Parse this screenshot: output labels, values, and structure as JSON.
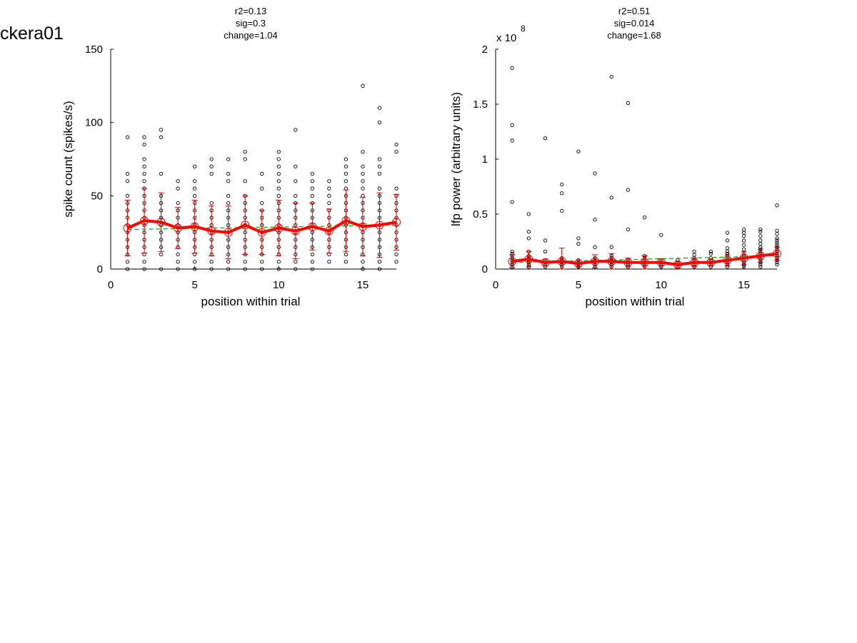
{
  "figure_title": "ckera01",
  "chart_data": [
    {
      "type": "scatter",
      "stats": {
        "r2": "r2=0.13",
        "sig": "sig=0.3",
        "change": "change=1.04"
      },
      "xlabel": "position within trial",
      "ylabel": "spike count (spikes/s)",
      "exponent_label": "",
      "xlim": [
        0,
        17
      ],
      "ylim": [
        0,
        150
      ],
      "x_ticks": [
        0,
        5,
        10,
        15
      ],
      "y_ticks": [
        0,
        50,
        100,
        150
      ],
      "y_tick_labels": [
        "0",
        "50",
        "100",
        "150"
      ],
      "grid": false,
      "colors": {
        "raw_points": "#000000",
        "mean_line": "#ff0000",
        "error_bars": "#cc0000",
        "mean_markers": "#ff0000",
        "fit_line": "#00aa00"
      },
      "points": [
        {
          "x": 1,
          "y": [
            0,
            5,
            10,
            15,
            20,
            25,
            30,
            35,
            40,
            45,
            50,
            60,
            65,
            90
          ]
        },
        {
          "x": 2,
          "y": [
            0,
            5,
            10,
            15,
            20,
            25,
            30,
            35,
            40,
            45,
            50,
            55,
            60,
            65,
            70,
            75,
            85,
            90
          ]
        },
        {
          "x": 3,
          "y": [
            0,
            10,
            15,
            20,
            25,
            30,
            35,
            40,
            45,
            50,
            65,
            90,
            95
          ]
        },
        {
          "x": 4,
          "y": [
            0,
            5,
            10,
            15,
            20,
            25,
            30,
            35,
            40,
            45,
            55,
            60
          ]
        },
        {
          "x": 5,
          "y": [
            0,
            5,
            10,
            15,
            20,
            25,
            30,
            35,
            40,
            45,
            50,
            55,
            60,
            70
          ]
        },
        {
          "x": 6,
          "y": [
            0,
            5,
            10,
            15,
            20,
            25,
            30,
            35,
            40,
            45,
            65,
            70,
            75
          ]
        },
        {
          "x": 7,
          "y": [
            0,
            5,
            10,
            15,
            20,
            25,
            30,
            35,
            40,
            45,
            50,
            60,
            65,
            75
          ]
        },
        {
          "x": 8,
          "y": [
            0,
            5,
            10,
            15,
            20,
            25,
            30,
            35,
            40,
            45,
            50,
            60,
            75,
            80
          ]
        },
        {
          "x": 9,
          "y": [
            0,
            5,
            10,
            15,
            20,
            25,
            30,
            35,
            40,
            45,
            55,
            65
          ]
        },
        {
          "x": 10,
          "y": [
            0,
            5,
            10,
            15,
            20,
            25,
            30,
            35,
            40,
            45,
            50,
            55,
            60,
            65,
            70,
            75,
            80
          ]
        },
        {
          "x": 11,
          "y": [
            0,
            5,
            10,
            15,
            20,
            25,
            30,
            35,
            40,
            45,
            50,
            60,
            70,
            95
          ]
        },
        {
          "x": 12,
          "y": [
            0,
            5,
            10,
            15,
            20,
            25,
            30,
            35,
            40,
            45,
            50,
            55,
            60,
            65
          ]
        },
        {
          "x": 13,
          "y": [
            5,
            10,
            15,
            20,
            25,
            30,
            35,
            40,
            45,
            50,
            55,
            60
          ]
        },
        {
          "x": 14,
          "y": [
            5,
            10,
            15,
            20,
            25,
            30,
            35,
            40,
            45,
            50,
            55,
            60,
            65,
            70,
            75
          ]
        },
        {
          "x": 15,
          "y": [
            0,
            5,
            10,
            15,
            20,
            25,
            30,
            35,
            40,
            45,
            50,
            55,
            60,
            65,
            70,
            80,
            125
          ]
        },
        {
          "x": 16,
          "y": [
            0,
            5,
            10,
            15,
            20,
            25,
            30,
            35,
            40,
            45,
            50,
            55,
            65,
            70,
            75,
            100,
            110
          ]
        },
        {
          "x": 17,
          "y": [
            5,
            10,
            15,
            20,
            25,
            30,
            35,
            40,
            45,
            50,
            55,
            80,
            85
          ]
        }
      ],
      "mean": [
        28,
        33,
        32,
        28,
        29,
        26,
        25,
        30,
        25,
        28,
        26,
        29,
        26,
        33,
        29,
        30,
        32
      ],
      "error": [
        19,
        22,
        20,
        14,
        18,
        17,
        18,
        20,
        15,
        19,
        19,
        16,
        15,
        21,
        20,
        22,
        19
      ],
      "fit": {
        "x": [
          1,
          17
        ],
        "y": [
          27,
          30
        ]
      }
    },
    {
      "type": "scatter",
      "stats": {
        "r2": "r2=0.51",
        "sig": "sig=0.014",
        "change": "change=1.68"
      },
      "xlabel": "position within trial",
      "ylabel": "lfp power (arbitrary units)",
      "exponent_label": "x 10",
      "exponent_power": "8",
      "xlim": [
        0,
        17
      ],
      "ylim": [
        0,
        2
      ],
      "x_ticks": [
        0,
        5,
        10,
        15
      ],
      "y_ticks": [
        0,
        0.5,
        1,
        1.5,
        2
      ],
      "y_tick_labels": [
        "0",
        "0.5",
        "1",
        "1.5",
        "2"
      ],
      "grid": false,
      "colors": {
        "raw_points": "#000000",
        "mean_line": "#ff0000",
        "error_bars": "#cc0000",
        "mean_markers": "#ff0000",
        "fit_line": "#00aa00"
      },
      "points": [
        {
          "x": 1,
          "y": [
            0.02,
            0.04,
            0.06,
            0.08,
            0.1,
            0.12,
            0.14,
            0.16,
            0.61,
            1.17,
            1.31,
            1.83
          ]
        },
        {
          "x": 2,
          "y": [
            0.02,
            0.04,
            0.06,
            0.08,
            0.1,
            0.12,
            0.16,
            0.28,
            0.34,
            0.5
          ]
        },
        {
          "x": 3,
          "y": [
            0.02,
            0.04,
            0.06,
            0.08,
            0.16,
            0.26,
            1.19
          ]
        },
        {
          "x": 4,
          "y": [
            0.02,
            0.04,
            0.06,
            0.08,
            0.1,
            0.53,
            0.69,
            0.77
          ]
        },
        {
          "x": 5,
          "y": [
            0.02,
            0.04,
            0.06,
            0.08,
            0.23,
            0.28,
            1.07
          ]
        },
        {
          "x": 6,
          "y": [
            0.02,
            0.04,
            0.06,
            0.08,
            0.1,
            0.2,
            0.45,
            0.87
          ]
        },
        {
          "x": 7,
          "y": [
            0.02,
            0.04,
            0.06,
            0.08,
            0.1,
            0.12,
            0.2,
            0.65,
            1.75
          ]
        },
        {
          "x": 8,
          "y": [
            0.02,
            0.04,
            0.06,
            0.08,
            0.36,
            0.72,
            1.51
          ]
        },
        {
          "x": 9,
          "y": [
            0.02,
            0.04,
            0.06,
            0.08,
            0.1,
            0.12,
            0.47
          ]
        },
        {
          "x": 10,
          "y": [
            0.02,
            0.04,
            0.06,
            0.08,
            0.31
          ]
        },
        {
          "x": 11,
          "y": [
            0.02,
            0.04,
            0.06,
            0.08
          ]
        },
        {
          "x": 12,
          "y": [
            0.02,
            0.04,
            0.06,
            0.08,
            0.1,
            0.13,
            0.16
          ]
        },
        {
          "x": 13,
          "y": [
            0.02,
            0.04,
            0.06,
            0.08,
            0.1,
            0.14,
            0.16
          ]
        },
        {
          "x": 14,
          "y": [
            0.02,
            0.04,
            0.06,
            0.08,
            0.1,
            0.12,
            0.14,
            0.16,
            0.19,
            0.26,
            0.33
          ]
        },
        {
          "x": 15,
          "y": [
            0.02,
            0.04,
            0.06,
            0.08,
            0.1,
            0.12,
            0.14,
            0.18,
            0.22,
            0.26,
            0.3,
            0.33,
            0.36
          ]
        },
        {
          "x": 16,
          "y": [
            0.02,
            0.04,
            0.06,
            0.08,
            0.1,
            0.12,
            0.14,
            0.16,
            0.18,
            0.2,
            0.23,
            0.26,
            0.3,
            0.34,
            0.36
          ]
        },
        {
          "x": 17,
          "y": [
            0.04,
            0.06,
            0.08,
            0.1,
            0.12,
            0.14,
            0.16,
            0.18,
            0.2,
            0.22,
            0.24,
            0.26,
            0.28,
            0.32,
            0.35,
            0.58
          ]
        }
      ],
      "mean": [
        0.07,
        0.09,
        0.06,
        0.07,
        0.05,
        0.07,
        0.07,
        0.06,
        0.06,
        0.06,
        0.04,
        0.06,
        0.06,
        0.08,
        0.1,
        0.12,
        0.14
      ],
      "error": [
        0.06,
        0.07,
        0.03,
        0.12,
        0.03,
        0.06,
        0.07,
        0.04,
        0.06,
        0.03,
        0.03,
        0.04,
        0.03,
        0.05,
        0.06,
        0.06,
        0.06
      ],
      "fit": {
        "x": [
          1,
          17
        ],
        "y": [
          0.06,
          0.12
        ]
      }
    }
  ]
}
